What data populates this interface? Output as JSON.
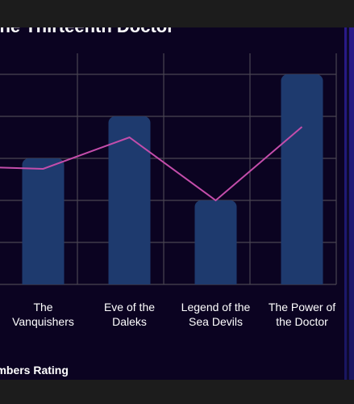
{
  "chart_data": {
    "type": "bar",
    "title": "The Thirteenth Doctor",
    "categories": [
      [
        "The",
        "Vanquishers"
      ],
      [
        "Eve of the",
        "Daleks"
      ],
      [
        "Legend of the",
        "Sea Devils"
      ],
      [
        "The Power of",
        "the Doctor"
      ]
    ],
    "series": [
      {
        "name": "Members Rating",
        "values": [
          6.0,
          8.0,
          4.0,
          10.0
        ],
        "color": "#1e3a6e",
        "kind": "bar"
      },
      {
        "values": [
          5.5,
          7.0,
          4.0,
          7.5
        ],
        "color": "#c44dab",
        "kind": "line"
      }
    ],
    "ylim": [
      0,
      11
    ],
    "grid": true,
    "legend_position": "bottom-left"
  },
  "colors": {
    "card_background": "#0b0321",
    "grid": "#4a4552",
    "text": "#ffffff"
  }
}
